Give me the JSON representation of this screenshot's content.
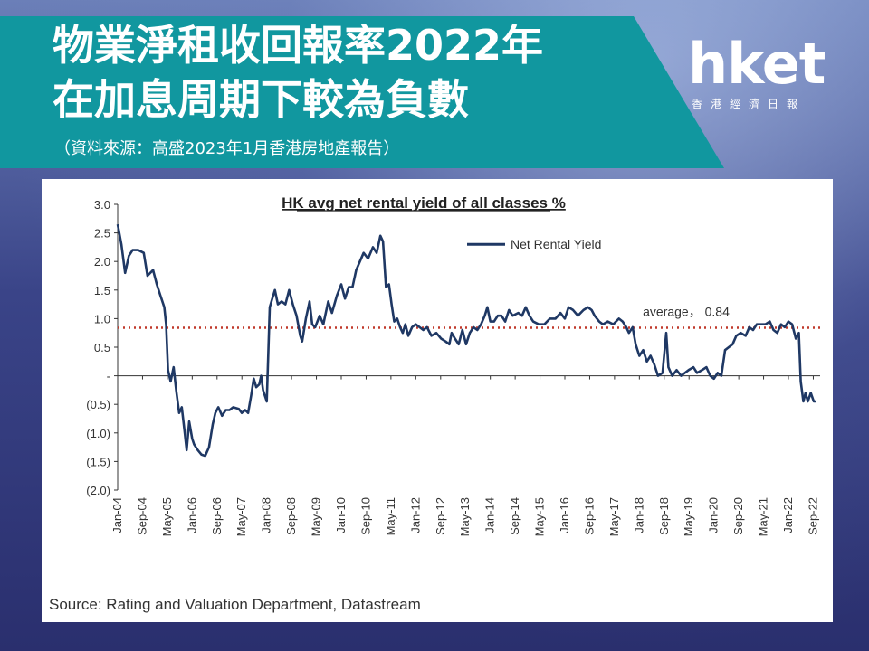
{
  "header": {
    "title_line1": "物業淨租收回報率2022年",
    "title_line2": "在加息周期下較為負數",
    "source_note": "（資料來源：高盛2023年1月香港房地產報告）"
  },
  "logo": {
    "word": "hket",
    "subtitle": "香港經濟日報"
  },
  "footer": {
    "source": "Source: Rating and Valuation Department, Datastream"
  },
  "colors": {
    "banner": "#11979f",
    "series": "#1f3864",
    "average": "#c0392b"
  },
  "chart_data": {
    "type": "line",
    "title": "HK avg net rental yield of all classes %",
    "xlabel": "",
    "ylabel": "",
    "ylim": [
      -2.0,
      3.0
    ],
    "y_ticks": [
      {
        "value": 3.0,
        "label": "3.0"
      },
      {
        "value": 2.5,
        "label": "2.5"
      },
      {
        "value": 2.0,
        "label": "2.0"
      },
      {
        "value": 1.5,
        "label": "1.5"
      },
      {
        "value": 1.0,
        "label": "1.0"
      },
      {
        "value": 0.5,
        "label": "0.5"
      },
      {
        "value": 0.0,
        "label": "-"
      },
      {
        "value": -0.5,
        "label": "(0.5)"
      },
      {
        "value": -1.0,
        "label": "(1.0)"
      },
      {
        "value": -1.5,
        "label": "(1.5)"
      },
      {
        "value": -2.0,
        "label": "(2.0)"
      }
    ],
    "x_ticks": [
      {
        "x": 2004.0,
        "label": "Jan-04"
      },
      {
        "x": 2004.667,
        "label": "Sep-04"
      },
      {
        "x": 2005.333,
        "label": "May-05"
      },
      {
        "x": 2006.0,
        "label": "Jan-06"
      },
      {
        "x": 2006.667,
        "label": "Sep-06"
      },
      {
        "x": 2007.333,
        "label": "May-07"
      },
      {
        "x": 2008.0,
        "label": "Jan-08"
      },
      {
        "x": 2008.667,
        "label": "Sep-08"
      },
      {
        "x": 2009.333,
        "label": "May-09"
      },
      {
        "x": 2010.0,
        "label": "Jan-10"
      },
      {
        "x": 2010.667,
        "label": "Sep-10"
      },
      {
        "x": 2011.333,
        "label": "May-11"
      },
      {
        "x": 2012.0,
        "label": "Jan-12"
      },
      {
        "x": 2012.667,
        "label": "Sep-12"
      },
      {
        "x": 2013.333,
        "label": "May-13"
      },
      {
        "x": 2014.0,
        "label": "Jan-14"
      },
      {
        "x": 2014.667,
        "label": "Sep-14"
      },
      {
        "x": 2015.333,
        "label": "May-15"
      },
      {
        "x": 2016.0,
        "label": "Jan-16"
      },
      {
        "x": 2016.667,
        "label": "Sep-16"
      },
      {
        "x": 2017.333,
        "label": "May-17"
      },
      {
        "x": 2018.0,
        "label": "Jan-18"
      },
      {
        "x": 2018.667,
        "label": "Sep-18"
      },
      {
        "x": 2019.333,
        "label": "May-19"
      },
      {
        "x": 2020.0,
        "label": "Jan-20"
      },
      {
        "x": 2020.667,
        "label": "Sep-20"
      },
      {
        "x": 2021.333,
        "label": "May-21"
      },
      {
        "x": 2022.0,
        "label": "Jan-22"
      },
      {
        "x": 2022.667,
        "label": "Sep-22"
      }
    ],
    "xlim": [
      2004.0,
      2022.85
    ],
    "legend": {
      "label": "Net Rental Yield",
      "placement": "top-center"
    },
    "average": {
      "value": 0.84,
      "label": "average， 0.84"
    },
    "series": [
      {
        "name": "Net Rental Yield",
        "points": [
          [
            2004.0,
            2.65
          ],
          [
            2004.1,
            2.3
          ],
          [
            2004.2,
            1.8
          ],
          [
            2004.3,
            2.1
          ],
          [
            2004.4,
            2.2
          ],
          [
            2004.55,
            2.2
          ],
          [
            2004.7,
            2.15
          ],
          [
            2004.8,
            1.75
          ],
          [
            2004.95,
            1.85
          ],
          [
            2005.05,
            1.6
          ],
          [
            2005.15,
            1.4
          ],
          [
            2005.25,
            1.2
          ],
          [
            2005.3,
            0.9
          ],
          [
            2005.35,
            0.1
          ],
          [
            2005.42,
            -0.1
          ],
          [
            2005.5,
            0.15
          ],
          [
            2005.57,
            -0.25
          ],
          [
            2005.65,
            -0.65
          ],
          [
            2005.72,
            -0.55
          ],
          [
            2005.8,
            -1.0
          ],
          [
            2005.85,
            -1.3
          ],
          [
            2005.92,
            -0.8
          ],
          [
            2006.0,
            -1.1
          ],
          [
            2006.05,
            -1.2
          ],
          [
            2006.15,
            -1.3
          ],
          [
            2006.25,
            -1.38
          ],
          [
            2006.35,
            -1.4
          ],
          [
            2006.45,
            -1.25
          ],
          [
            2006.55,
            -0.85
          ],
          [
            2006.62,
            -0.65
          ],
          [
            2006.7,
            -0.55
          ],
          [
            2006.8,
            -0.7
          ],
          [
            2006.9,
            -0.6
          ],
          [
            2007.0,
            -0.6
          ],
          [
            2007.1,
            -0.55
          ],
          [
            2007.25,
            -0.58
          ],
          [
            2007.33,
            -0.65
          ],
          [
            2007.42,
            -0.6
          ],
          [
            2007.5,
            -0.65
          ],
          [
            2007.58,
            -0.35
          ],
          [
            2007.65,
            -0.05
          ],
          [
            2007.72,
            -0.2
          ],
          [
            2007.8,
            -0.15
          ],
          [
            2007.85,
            0.0
          ],
          [
            2007.9,
            -0.25
          ],
          [
            2008.0,
            -0.45
          ],
          [
            2008.08,
            1.2
          ],
          [
            2008.15,
            1.35
          ],
          [
            2008.22,
            1.5
          ],
          [
            2008.3,
            1.25
          ],
          [
            2008.4,
            1.3
          ],
          [
            2008.5,
            1.25
          ],
          [
            2008.6,
            1.5
          ],
          [
            2008.7,
            1.25
          ],
          [
            2008.8,
            1.05
          ],
          [
            2008.9,
            0.7
          ],
          [
            2008.95,
            0.6
          ],
          [
            2009.05,
            1.0
          ],
          [
            2009.15,
            1.3
          ],
          [
            2009.22,
            0.9
          ],
          [
            2009.3,
            0.85
          ],
          [
            2009.42,
            1.05
          ],
          [
            2009.52,
            0.9
          ],
          [
            2009.65,
            1.3
          ],
          [
            2009.75,
            1.1
          ],
          [
            2009.88,
            1.4
          ],
          [
            2010.0,
            1.6
          ],
          [
            2010.1,
            1.35
          ],
          [
            2010.2,
            1.55
          ],
          [
            2010.3,
            1.55
          ],
          [
            2010.4,
            1.85
          ],
          [
            2010.5,
            2.0
          ],
          [
            2010.6,
            2.15
          ],
          [
            2010.72,
            2.05
          ],
          [
            2010.85,
            2.25
          ],
          [
            2010.95,
            2.15
          ],
          [
            2011.05,
            2.45
          ],
          [
            2011.12,
            2.35
          ],
          [
            2011.2,
            1.55
          ],
          [
            2011.28,
            1.6
          ],
          [
            2011.35,
            1.25
          ],
          [
            2011.42,
            0.95
          ],
          [
            2011.5,
            1.0
          ],
          [
            2011.58,
            0.85
          ],
          [
            2011.65,
            0.75
          ],
          [
            2011.72,
            0.9
          ],
          [
            2011.8,
            0.7
          ],
          [
            2011.9,
            0.85
          ],
          [
            2012.0,
            0.9
          ],
          [
            2012.1,
            0.85
          ],
          [
            2012.2,
            0.8
          ],
          [
            2012.3,
            0.85
          ],
          [
            2012.42,
            0.7
          ],
          [
            2012.55,
            0.75
          ],
          [
            2012.68,
            0.65
          ],
          [
            2012.8,
            0.6
          ],
          [
            2012.9,
            0.55
          ],
          [
            2012.96,
            0.75
          ],
          [
            2013.05,
            0.65
          ],
          [
            2013.15,
            0.55
          ],
          [
            2013.25,
            0.8
          ],
          [
            2013.35,
            0.55
          ],
          [
            2013.45,
            0.75
          ],
          [
            2013.55,
            0.85
          ],
          [
            2013.65,
            0.8
          ],
          [
            2013.75,
            0.9
          ],
          [
            2013.85,
            1.05
          ],
          [
            2013.92,
            1.2
          ],
          [
            2014.0,
            0.95
          ],
          [
            2014.1,
            0.95
          ],
          [
            2014.2,
            1.05
          ],
          [
            2014.3,
            1.05
          ],
          [
            2014.4,
            0.95
          ],
          [
            2014.5,
            1.15
          ],
          [
            2014.6,
            1.05
          ],
          [
            2014.75,
            1.1
          ],
          [
            2014.85,
            1.05
          ],
          [
            2014.95,
            1.2
          ],
          [
            2015.05,
            1.05
          ],
          [
            2015.15,
            0.95
          ],
          [
            2015.3,
            0.9
          ],
          [
            2015.45,
            0.9
          ],
          [
            2015.6,
            1.0
          ],
          [
            2015.75,
            1.0
          ],
          [
            2015.88,
            1.1
          ],
          [
            2016.0,
            1.0
          ],
          [
            2016.1,
            1.2
          ],
          [
            2016.22,
            1.15
          ],
          [
            2016.35,
            1.05
          ],
          [
            2016.5,
            1.15
          ],
          [
            2016.62,
            1.2
          ],
          [
            2016.72,
            1.15
          ],
          [
            2016.8,
            1.05
          ],
          [
            2016.92,
            0.95
          ],
          [
            2017.02,
            0.9
          ],
          [
            2017.15,
            0.95
          ],
          [
            2017.3,
            0.9
          ],
          [
            2017.45,
            1.0
          ],
          [
            2017.55,
            0.95
          ],
          [
            2017.65,
            0.85
          ],
          [
            2017.72,
            0.75
          ],
          [
            2017.82,
            0.85
          ],
          [
            2017.9,
            0.55
          ],
          [
            2018.0,
            0.35
          ],
          [
            2018.1,
            0.45
          ],
          [
            2018.2,
            0.25
          ],
          [
            2018.3,
            0.35
          ],
          [
            2018.4,
            0.2
          ],
          [
            2018.5,
            0.0
          ],
          [
            2018.62,
            0.05
          ],
          [
            2018.72,
            0.75
          ],
          [
            2018.78,
            0.15
          ],
          [
            2018.88,
            0.0
          ],
          [
            2019.0,
            0.1
          ],
          [
            2019.12,
            0.0
          ],
          [
            2019.22,
            0.05
          ],
          [
            2019.32,
            0.1
          ],
          [
            2019.45,
            0.15
          ],
          [
            2019.55,
            0.05
          ],
          [
            2019.68,
            0.1
          ],
          [
            2019.8,
            0.15
          ],
          [
            2019.9,
            0.0
          ],
          [
            2020.0,
            -0.05
          ],
          [
            2020.1,
            0.05
          ],
          [
            2020.2,
            0.0
          ],
          [
            2020.3,
            0.45
          ],
          [
            2020.4,
            0.5
          ],
          [
            2020.5,
            0.55
          ],
          [
            2020.6,
            0.7
          ],
          [
            2020.72,
            0.75
          ],
          [
            2020.85,
            0.7
          ],
          [
            2020.95,
            0.85
          ],
          [
            2021.05,
            0.8
          ],
          [
            2021.15,
            0.9
          ],
          [
            2021.25,
            0.9
          ],
          [
            2021.38,
            0.9
          ],
          [
            2021.5,
            0.95
          ],
          [
            2021.6,
            0.8
          ],
          [
            2021.7,
            0.75
          ],
          [
            2021.8,
            0.9
          ],
          [
            2021.9,
            0.85
          ],
          [
            2022.0,
            0.95
          ],
          [
            2022.1,
            0.9
          ],
          [
            2022.2,
            0.65
          ],
          [
            2022.28,
            0.75
          ],
          [
            2022.33,
            -0.1
          ],
          [
            2022.4,
            -0.45
          ],
          [
            2022.46,
            -0.3
          ],
          [
            2022.52,
            -0.45
          ],
          [
            2022.6,
            -0.3
          ],
          [
            2022.68,
            -0.45
          ],
          [
            2022.75,
            -0.45
          ]
        ]
      }
    ]
  }
}
